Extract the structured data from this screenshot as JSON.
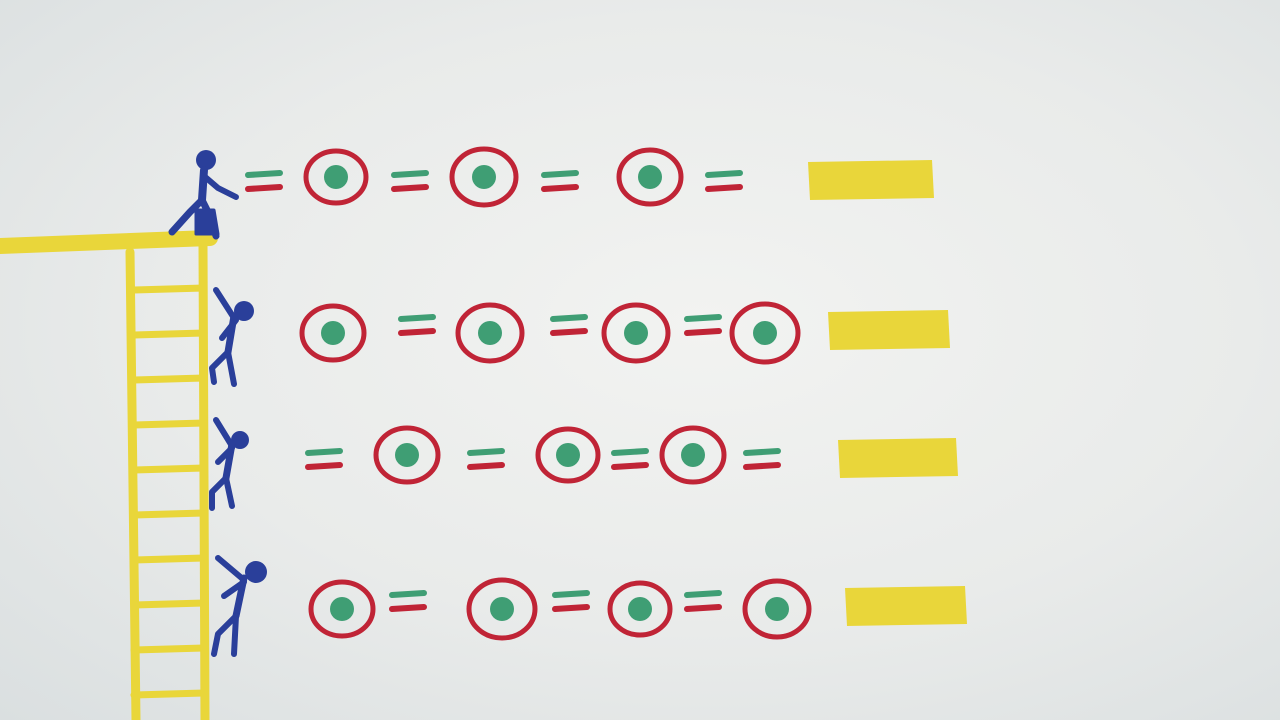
{
  "colors": {
    "ladder": "#e9d63a",
    "figure": "#2a3f9a",
    "ring": "#c02436",
    "dot": "#3f9e74",
    "eq_top": "#3f9e74",
    "eq_bottom": "#c02436",
    "bar": "#e9d63a"
  },
  "icons": {
    "ladder": "ladder-icon",
    "platform": "platform-icon",
    "standing_person": "standing-person-icon",
    "climbing_person": "climbing-person-icon",
    "coin": "coin-icon",
    "equals": "equals-sign-icon",
    "result": "yellow-bar-icon"
  },
  "rows": [
    {
      "figure": "standing",
      "sequence": [
        "eq",
        "coin",
        "eq",
        "coin",
        "eq",
        "coin",
        "eq"
      ]
    },
    {
      "figure": "climbing",
      "sequence": [
        "coin",
        "eq",
        "coin",
        "eq",
        "coin",
        "eq",
        "coin"
      ]
    },
    {
      "figure": "climbing",
      "sequence": [
        "eq",
        "coin",
        "eq",
        "coin",
        "eq",
        "coin",
        "eq"
      ]
    },
    {
      "figure": "climbing",
      "sequence": [
        "coin",
        "eq",
        "coin",
        "eq",
        "coin",
        "eq",
        "coin"
      ]
    }
  ]
}
